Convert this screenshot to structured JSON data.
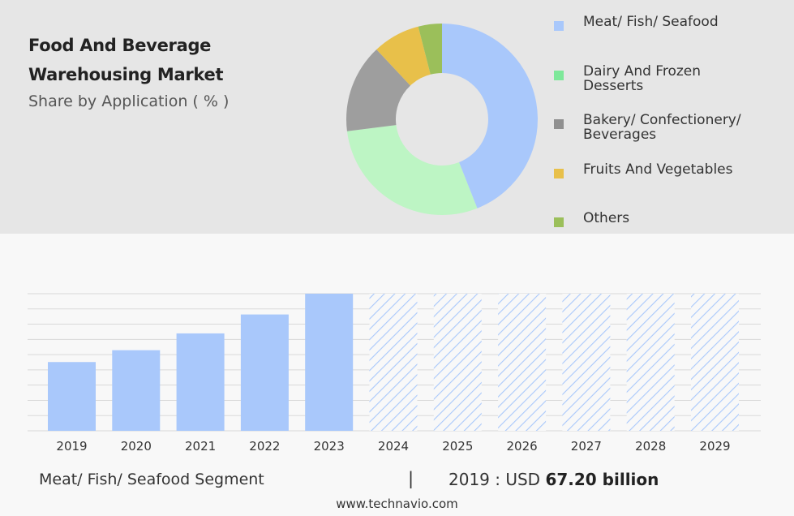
{
  "title_line1": "Food And Beverage",
  "title_line2": "Warehousing Market",
  "subtitle": "Share by Application ( % )",
  "legend": [
    {
      "label": "Meat/ Fish/ Seafood",
      "color": "#a9c8fb"
    },
    {
      "label": "Dairy And Frozen\nDesserts",
      "color": "#7ee89a"
    },
    {
      "label": "Bakery/ Confectionery/\nBeverages",
      "color": "#909090"
    },
    {
      "label": "Fruits And Vegetables",
      "color": "#e8c04a"
    },
    {
      "label": "Others",
      "color": "#9bbf5a"
    }
  ],
  "footer": {
    "segment": "Meat/ Fish/ Seafood Segment",
    "separator": "|",
    "year_prefix": "2019 : USD ",
    "value": "67.20 billion"
  },
  "website": "www.technavio.com",
  "chart_data": [
    {
      "type": "pie",
      "variant": "donut",
      "title": "Share by Application ( % )",
      "categories": [
        "Meat/ Fish/ Seafood",
        "Dairy And Frozen Desserts",
        "Bakery/ Confectionery/ Beverages",
        "Fruits And Vegetables",
        "Others"
      ],
      "values": [
        44,
        29,
        15,
        8,
        4
      ],
      "colors": [
        "#a9c8fb",
        "#bdf5c4",
        "#9e9e9e",
        "#e8c04a",
        "#9bbf5a"
      ],
      "legend_position": "right"
    },
    {
      "type": "bar",
      "categories": [
        "2019",
        "2020",
        "2021",
        "2022",
        "2023",
        "2024",
        "2025",
        "2026",
        "2027",
        "2028",
        "2029"
      ],
      "values": [
        67.2,
        78.8,
        95.2,
        113.7,
        134.0,
        null,
        null,
        null,
        null,
        null,
        null
      ],
      "forecast_categories": [
        "2024",
        "2025",
        "2026",
        "2027",
        "2028",
        "2029"
      ],
      "forecast_style": "hatched",
      "color": "#a9c8fb",
      "ylim": [
        0,
        134
      ],
      "grid": true
    }
  ]
}
